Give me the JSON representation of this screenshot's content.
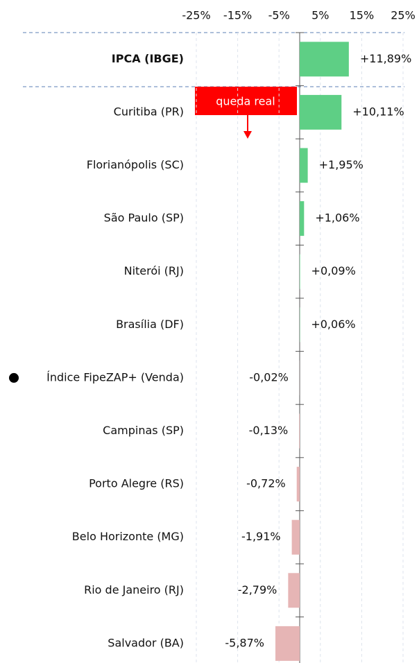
{
  "chart_data": {
    "type": "bar",
    "orientation": "horizontal",
    "categories": [
      "IPCA (IBGE)",
      "Curitiba (PR)",
      "Florianópolis (SC)",
      "São Paulo (SP)",
      "Niterói (RJ)",
      "Brasília (DF)",
      "Índice FipeZAP+ (Venda)",
      "Campinas (SP)",
      "Porto Alegre (RS)",
      "Belo Horizonte (MG)",
      "Rio de Janeiro (RJ)",
      "Salvador (BA)"
    ],
    "values": [
      11.89,
      10.11,
      1.95,
      1.06,
      0.09,
      0.06,
      -0.02,
      -0.13,
      -0.72,
      -1.91,
      -2.79,
      -5.87
    ],
    "value_labels": [
      "+11,89%",
      "+10,11%",
      "+1,95%",
      "+1,06%",
      "+0,09%",
      "+0,06%",
      "-0,02%",
      "-0,13%",
      "-0,72%",
      "-1,91%",
      "-2,79%",
      "-5,87%"
    ],
    "positive_color": "#5ecf85",
    "negative_color": "#e6b5b5",
    "xlim": [
      -25,
      25
    ],
    "xticks": [
      {
        "value": -25,
        "label": "-25%"
      },
      {
        "value": -15,
        "label": "-15%"
      },
      {
        "value": -5,
        "label": "-5%"
      },
      {
        "value": 5,
        "label": "5%"
      },
      {
        "value": 15,
        "label": "15%"
      },
      {
        "value": 25,
        "label": "25%"
      }
    ],
    "grid": true,
    "annotation": "queda real"
  }
}
